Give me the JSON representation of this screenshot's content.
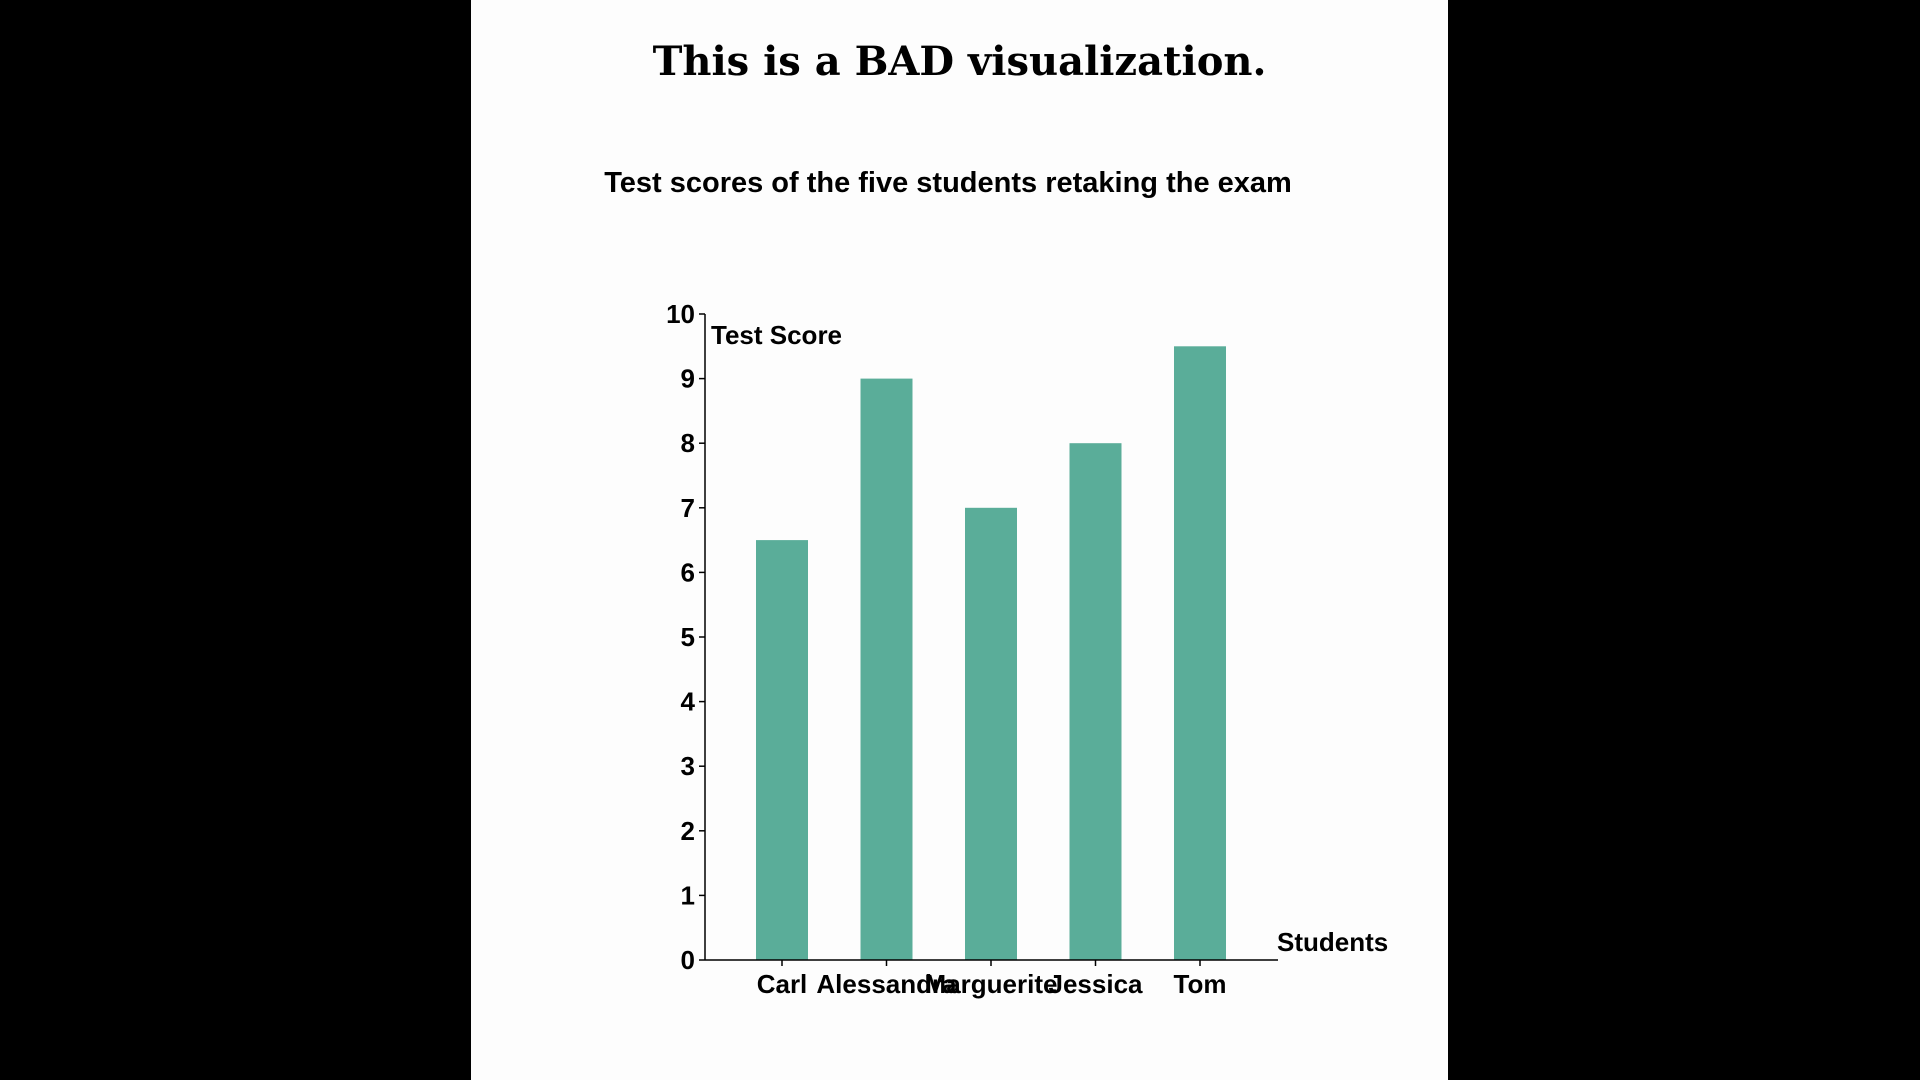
{
  "page": {
    "heading": "This is a BAD visualization."
  },
  "chart_data": {
    "type": "bar",
    "title": "Test scores of the five students retaking the exam",
    "xlabel": "Students",
    "ylabel": "Test Score",
    "categories": [
      "Carl",
      "Alessandra",
      "Marguerite",
      "Jessica",
      "Tom"
    ],
    "values": [
      6.5,
      9,
      7,
      8,
      9.5
    ],
    "ylim": [
      0,
      10
    ],
    "yticks": [
      0,
      1,
      2,
      3,
      4,
      5,
      6,
      7,
      8,
      9,
      10
    ],
    "grid": false,
    "legend": "none",
    "bar_color": "#5aad99"
  }
}
